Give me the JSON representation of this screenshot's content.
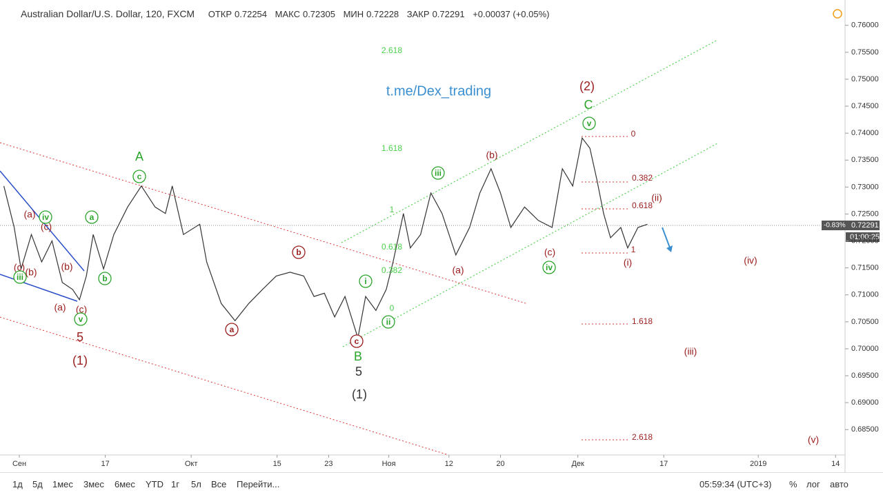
{
  "header": {
    "title": "Australian Dollar/U.S. Dollar, 120, FXCM",
    "open_label": "ОТКР",
    "open": "0.72254",
    "high_label": "МАКС",
    "high": "0.72305",
    "low_label": "МИН",
    "low": "0.72228",
    "close_label": "ЗАКР",
    "close": "0.72291",
    "change": "+0.00037 (+0.05%)"
  },
  "price_tag": {
    "change": "-0.83%",
    "price": "0.72291",
    "countdown": "01:00:25"
  },
  "toolbar": {
    "ranges": [
      "1д",
      "5д",
      "1мес",
      "3мес",
      "6мес",
      "YTD",
      "1г",
      "5л",
      "Все"
    ],
    "goto": "Перейти...",
    "clock": "05:59:34 (UTC+3)",
    "percent": "%",
    "log": "лог",
    "auto": "авто"
  },
  "chart_data": {
    "type": "line",
    "color": "#333333",
    "x": [
      -1.8,
      -0.6,
      0.2,
      1.4,
      2.6,
      3.8,
      5.0,
      6.2,
      7.0,
      7.8,
      8.6,
      9.8,
      11.0,
      12.6,
      14.2,
      15.8,
      17.0,
      17.8,
      19.1,
      21.0,
      21.8,
      23.5,
      25.1,
      26.7,
      28.3,
      29.9,
      31.5,
      33.1,
      34.3,
      35.5,
      36.7,
      37.9,
      39.4,
      40.3,
      41.5,
      42.7,
      43.5,
      44.7,
      45.5,
      46.7,
      47.9,
      49.2,
      50.8,
      52.4,
      53.6,
      54.9,
      56.0,
      57.2,
      58.8,
      60.4,
      62.0,
      63.2,
      64.4,
      65.5,
      66.4,
      67.2,
      68.0,
      68.8,
      70.0,
      70.8,
      72.0,
      73.1
    ],
    "values": [
      0.7302,
      0.7225,
      0.7148,
      0.7212,
      0.7161,
      0.72,
      0.7123,
      0.711,
      0.7091,
      0.7135,
      0.7212,
      0.7148,
      0.7212,
      0.7263,
      0.7302,
      0.7263,
      0.7251,
      0.7302,
      0.7212,
      0.7231,
      0.7161,
      0.7084,
      0.7052,
      0.7084,
      0.711,
      0.7135,
      0.7142,
      0.7135,
      0.7097,
      0.7103,
      0.7059,
      0.7097,
      0.702,
      0.7097,
      0.7071,
      0.711,
      0.7161,
      0.7251,
      0.7187,
      0.7212,
      0.7289,
      0.7251,
      0.7174,
      0.7225,
      0.7289,
      0.7334,
      0.7289,
      0.7225,
      0.7263,
      0.7238,
      0.7225,
      0.7334,
      0.7302,
      0.7391,
      0.7372,
      0.7315,
      0.7251,
      0.7206,
      0.7225,
      0.7187,
      0.7225,
      0.7231
    ],
    "xlim": [
      -2.25,
      96.1
    ],
    "ylim": [
      0.6803,
      0.7647
    ],
    "xticks": [
      {
        "value": 0,
        "label": "Сен"
      },
      {
        "value": 10,
        "label": "17"
      },
      {
        "value": 20,
        "label": "Окт"
      },
      {
        "value": 30,
        "label": "15"
      },
      {
        "value": 36,
        "label": "23"
      },
      {
        "value": 43,
        "label": "Ноя"
      },
      {
        "value": 50,
        "label": "12"
      },
      {
        "value": 56,
        "label": "20"
      },
      {
        "value": 65,
        "label": "Дек"
      },
      {
        "value": 75,
        "label": "17"
      },
      {
        "value": 86,
        "label": "2019"
      },
      {
        "value": 95,
        "label": "14"
      }
    ],
    "yticks": [
      {
        "value": 0.685,
        "label": "0.68500"
      },
      {
        "value": 0.69,
        "label": "0.69000"
      },
      {
        "value": 0.695,
        "label": "0.69500"
      },
      {
        "value": 0.7,
        "label": "0.70000"
      },
      {
        "value": 0.705,
        "label": "0.70500"
      },
      {
        "value": 0.71,
        "label": "0.71000"
      },
      {
        "value": 0.715,
        "label": "0.71500"
      },
      {
        "value": 0.72,
        "label": "0.72000"
      },
      {
        "value": 0.725,
        "label": "0.72500"
      },
      {
        "value": 0.73,
        "label": "0.73000"
      },
      {
        "value": 0.735,
        "label": "0.73500"
      },
      {
        "value": 0.74,
        "label": "0.74000"
      },
      {
        "value": 0.745,
        "label": "0.74500"
      },
      {
        "value": 0.75,
        "label": "0.75000"
      },
      {
        "value": 0.755,
        "label": "0.75500"
      },
      {
        "value": 0.76,
        "label": "0.76000"
      }
    ],
    "annotations": [
      "(a)",
      "(c)",
      "(b)",
      "(c)",
      "(b)",
      "(a)",
      "(c)",
      "5",
      "(1)",
      "(b)",
      "(a)",
      "(c)",
      "(2)",
      "(i)",
      "(ii)",
      "(iii)",
      "(iv)",
      "(v)",
      "A",
      "C",
      "B",
      "5",
      "(1)",
      "iv",
      "iii",
      "v",
      "a",
      "b",
      "c",
      "i",
      "ii",
      "iii",
      "iv",
      "v",
      "a",
      "b",
      "c",
      "2.618",
      "1.618",
      "1",
      "0.618",
      "0.382",
      "0",
      "0",
      "0.382",
      "0.618",
      "1",
      "1.618",
      "2.618",
      "t.me/Dex_trading"
    ]
  }
}
